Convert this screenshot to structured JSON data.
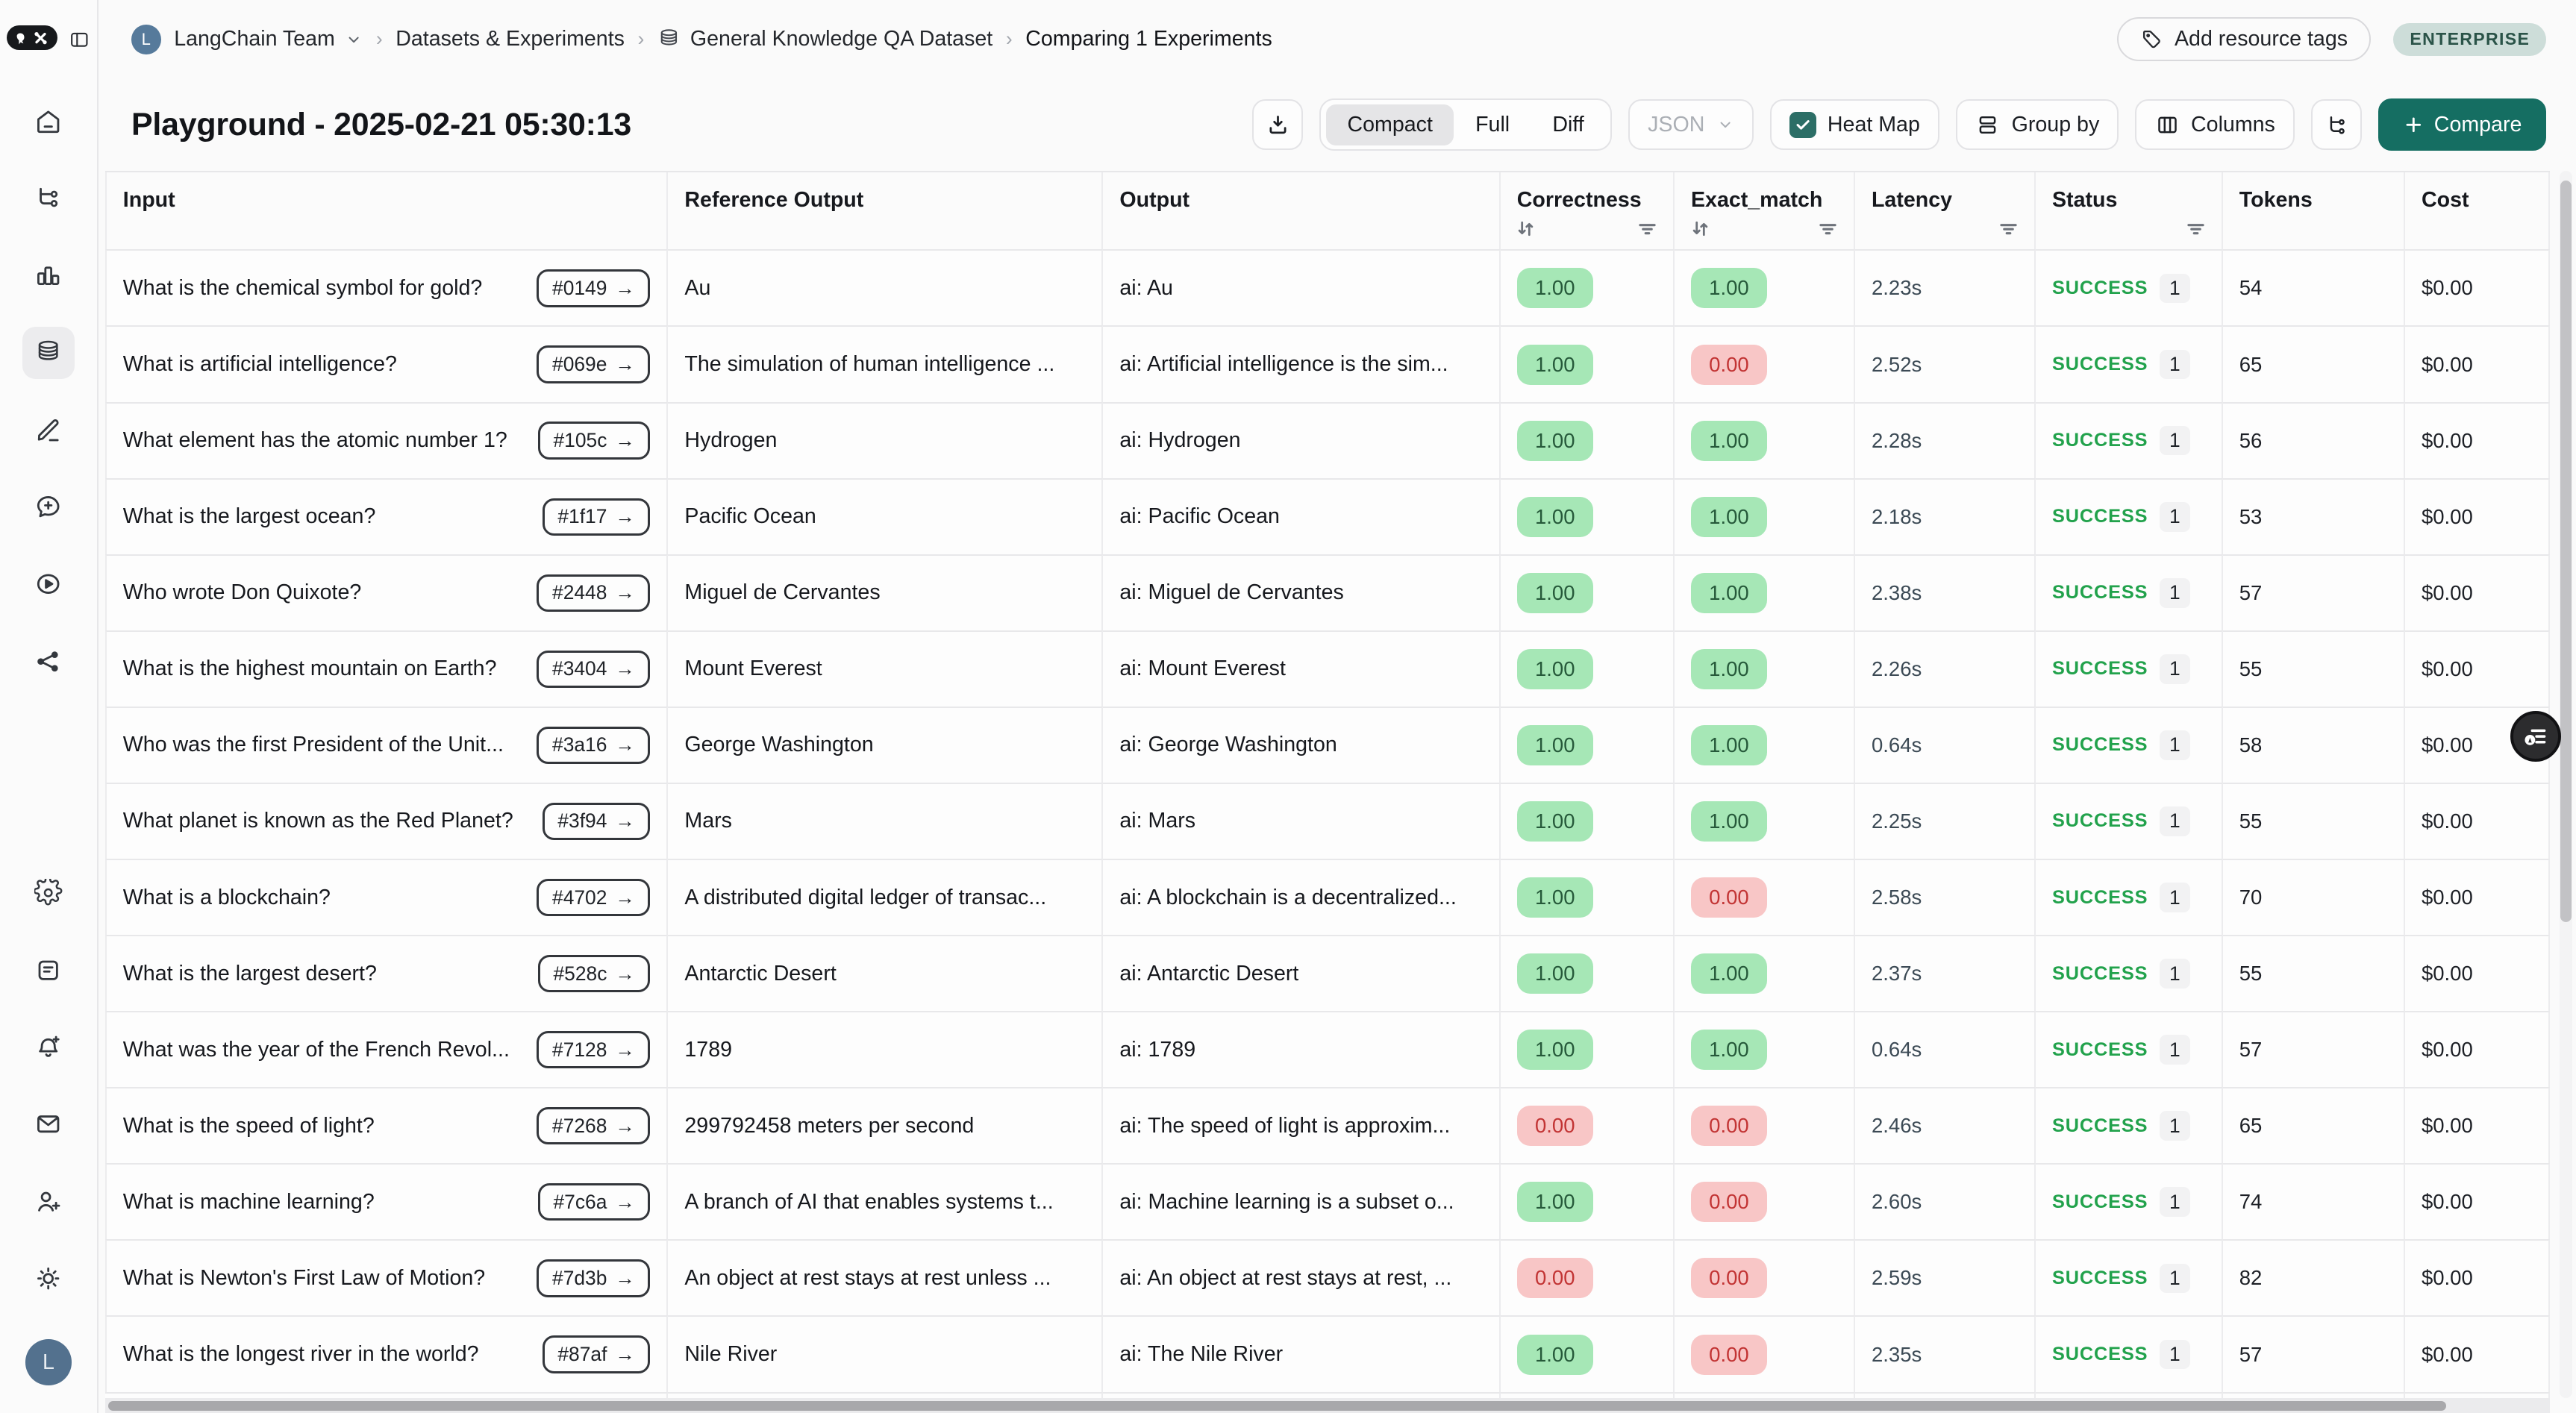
{
  "sidebar": {
    "nav_items": [
      {
        "name": "home",
        "active": false
      },
      {
        "name": "tracing",
        "active": false
      },
      {
        "name": "monitoring",
        "active": false
      },
      {
        "name": "datasets",
        "active": true
      },
      {
        "name": "annotations",
        "active": false
      },
      {
        "name": "prompts",
        "active": false
      },
      {
        "name": "playground",
        "active": false
      },
      {
        "name": "deployments",
        "active": false
      }
    ],
    "footer_items": [
      {
        "name": "settings"
      },
      {
        "name": "docs"
      },
      {
        "name": "notifications"
      },
      {
        "name": "mail"
      },
      {
        "name": "invite"
      },
      {
        "name": "theme"
      }
    ],
    "avatar_label": "L"
  },
  "breadcrumb": {
    "avatar_label": "L",
    "team": "LangChain Team",
    "section": "Datasets & Experiments",
    "dataset": "General Knowledge QA Dataset",
    "current": "Comparing 1 Experiments"
  },
  "top_right": {
    "add_tags_label": "Add resource tags",
    "plan_badge": "ENTERPRISE"
  },
  "page": {
    "title": "Playground - 2025-02-21 05:30:13"
  },
  "toolbar": {
    "modes": [
      "Compact",
      "Full",
      "Diff"
    ],
    "selected_mode": "Compact",
    "format_label": "JSON",
    "heatmap_label": "Heat Map",
    "heatmap_checked": true,
    "groupby_label": "Group by",
    "columns_label": "Columns",
    "compare_label": "Compare"
  },
  "colors": {
    "accent_teal": "#156e62",
    "success_green": "#22a24c",
    "badge_green_bg": "#a6e7b6",
    "badge_green_text": "#26593a",
    "badge_red_bg": "#f8c6c6",
    "badge_red_text": "#c23434"
  },
  "table": {
    "columns": [
      "Input",
      "Reference Output",
      "Output",
      "Correctness",
      "Exact_match",
      "Latency",
      "Status",
      "Tokens",
      "Cost"
    ],
    "rows": [
      {
        "input": "What is the chemical symbol for gold?",
        "id": "#0149",
        "reference_output": "Au",
        "output": "ai: Au",
        "correctness": "1.00",
        "exact_match": "1.00",
        "latency": "2.23s",
        "status": "SUCCESS",
        "runs": "1",
        "tokens": "54",
        "cost": "$0.00"
      },
      {
        "input": "What is artificial intelligence?",
        "id": "#069e",
        "reference_output": "The simulation of human intelligence ...",
        "output": "ai: Artificial intelligence is the sim...",
        "correctness": "1.00",
        "exact_match": "0.00",
        "latency": "2.52s",
        "status": "SUCCESS",
        "runs": "1",
        "tokens": "65",
        "cost": "$0.00"
      },
      {
        "input": "What element has the atomic number 1?",
        "id": "#105c",
        "reference_output": "Hydrogen",
        "output": "ai: Hydrogen",
        "correctness": "1.00",
        "exact_match": "1.00",
        "latency": "2.28s",
        "status": "SUCCESS",
        "runs": "1",
        "tokens": "56",
        "cost": "$0.00"
      },
      {
        "input": "What is the largest ocean?",
        "id": "#1f17",
        "reference_output": "Pacific Ocean",
        "output": "ai: Pacific Ocean",
        "correctness": "1.00",
        "exact_match": "1.00",
        "latency": "2.18s",
        "status": "SUCCESS",
        "runs": "1",
        "tokens": "53",
        "cost": "$0.00"
      },
      {
        "input": "Who wrote Don Quixote?",
        "id": "#2448",
        "reference_output": "Miguel de Cervantes",
        "output": "ai: Miguel de Cervantes",
        "correctness": "1.00",
        "exact_match": "1.00",
        "latency": "2.38s",
        "status": "SUCCESS",
        "runs": "1",
        "tokens": "57",
        "cost": "$0.00"
      },
      {
        "input": "What is the highest mountain on Earth?",
        "id": "#3404",
        "reference_output": "Mount Everest",
        "output": "ai: Mount Everest",
        "correctness": "1.00",
        "exact_match": "1.00",
        "latency": "2.26s",
        "status": "SUCCESS",
        "runs": "1",
        "tokens": "55",
        "cost": "$0.00"
      },
      {
        "input": "Who was the first President of the Unit...",
        "id": "#3a16",
        "reference_output": "George Washington",
        "output": "ai: George Washington",
        "correctness": "1.00",
        "exact_match": "1.00",
        "latency": "0.64s",
        "status": "SUCCESS",
        "runs": "1",
        "tokens": "58",
        "cost": "$0.00"
      },
      {
        "input": "What planet is known as the Red Planet?",
        "id": "#3f94",
        "reference_output": "Mars",
        "output": "ai: Mars",
        "correctness": "1.00",
        "exact_match": "1.00",
        "latency": "2.25s",
        "status": "SUCCESS",
        "runs": "1",
        "tokens": "55",
        "cost": "$0.00"
      },
      {
        "input": "What is a blockchain?",
        "id": "#4702",
        "reference_output": "A distributed digital ledger of transac...",
        "output": "ai: A blockchain is a decentralized...",
        "correctness": "1.00",
        "exact_match": "0.00",
        "latency": "2.58s",
        "status": "SUCCESS",
        "runs": "1",
        "tokens": "70",
        "cost": "$0.00"
      },
      {
        "input": "What is the largest desert?",
        "id": "#528c",
        "reference_output": "Antarctic Desert",
        "output": "ai: Antarctic Desert",
        "correctness": "1.00",
        "exact_match": "1.00",
        "latency": "2.37s",
        "status": "SUCCESS",
        "runs": "1",
        "tokens": "55",
        "cost": "$0.00"
      },
      {
        "input": "What was the year of the French Revol...",
        "id": "#7128",
        "reference_output": "1789",
        "output": "ai: 1789",
        "correctness": "1.00",
        "exact_match": "1.00",
        "latency": "0.64s",
        "status": "SUCCESS",
        "runs": "1",
        "tokens": "57",
        "cost": "$0.00"
      },
      {
        "input": "What is the speed of light?",
        "id": "#7268",
        "reference_output": "299792458 meters per second",
        "output": "ai: The speed of light is approxim...",
        "correctness": "0.00",
        "exact_match": "0.00",
        "latency": "2.46s",
        "status": "SUCCESS",
        "runs": "1",
        "tokens": "65",
        "cost": "$0.00"
      },
      {
        "input": "What is machine learning?",
        "id": "#7c6a",
        "reference_output": "A branch of AI that enables systems t...",
        "output": "ai: Machine learning is a subset o...",
        "correctness": "1.00",
        "exact_match": "0.00",
        "latency": "2.60s",
        "status": "SUCCESS",
        "runs": "1",
        "tokens": "74",
        "cost": "$0.00"
      },
      {
        "input": "What is Newton's First Law of Motion?",
        "id": "#7d3b",
        "reference_output": "An object at rest stays at rest unless ...",
        "output": "ai: An object at rest stays at rest, ...",
        "correctness": "0.00",
        "exact_match": "0.00",
        "latency": "2.59s",
        "status": "SUCCESS",
        "runs": "1",
        "tokens": "82",
        "cost": "$0.00"
      },
      {
        "input": "What is the longest river in the world?",
        "id": "#87af",
        "reference_output": "Nile River",
        "output": "ai: The Nile River",
        "correctness": "1.00",
        "exact_match": "0.00",
        "latency": "2.35s",
        "status": "SUCCESS",
        "runs": "1",
        "tokens": "57",
        "cost": "$0.00"
      }
    ]
  }
}
